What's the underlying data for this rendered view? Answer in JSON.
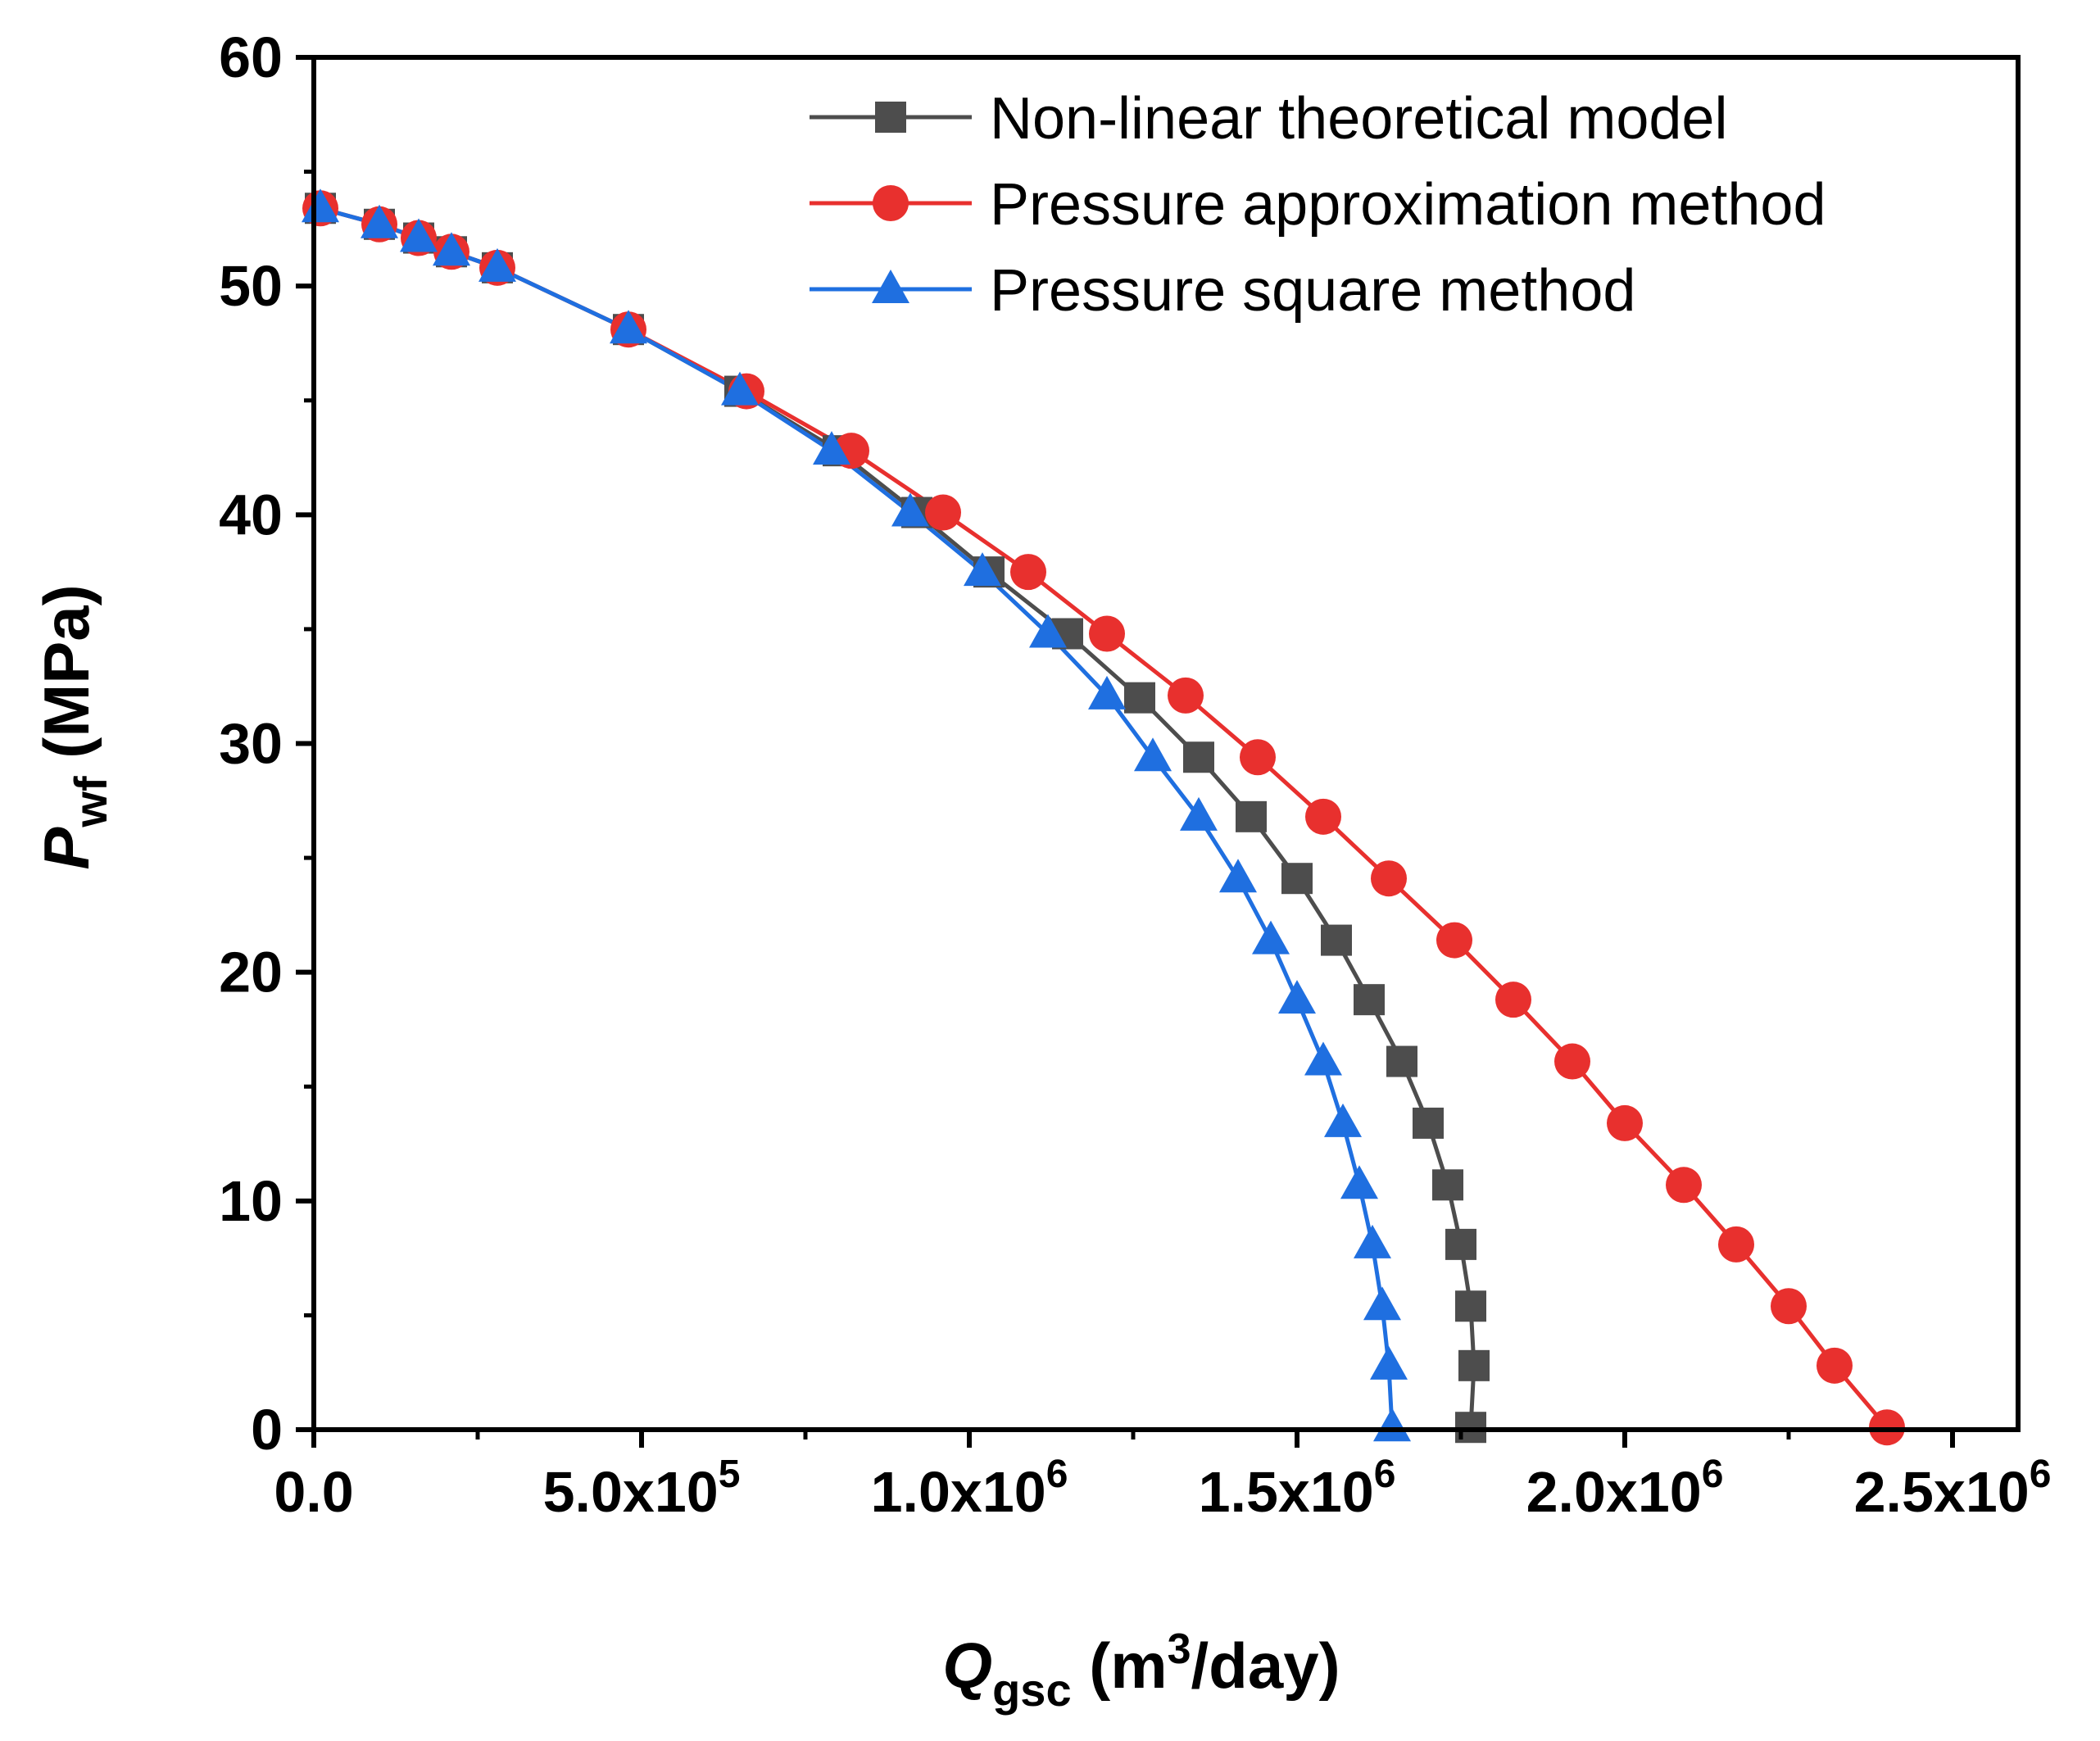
{
  "chart_data": {
    "type": "line",
    "title": "",
    "xlabel": {
      "main": "Q",
      "sub": "gsc",
      "unit_prefix": " (m",
      "unit_sup": "3",
      "unit_suffix": "/day)"
    },
    "ylabel": {
      "main": "P",
      "sub": "wf",
      "unit": " (MPa)"
    },
    "xlim": [
      0,
      2600000
    ],
    "ylim": [
      0,
      60
    ],
    "grid": false,
    "legend_position": "top-right",
    "x_ticks": [
      {
        "value": 0,
        "mantissa": "0.0",
        "exp": ""
      },
      {
        "value": 500000,
        "mantissa": "5.0x10",
        "exp": "5"
      },
      {
        "value": 1000000,
        "mantissa": "1.0x10",
        "exp": "6"
      },
      {
        "value": 1500000,
        "mantissa": "1.5x10",
        "exp": "6"
      },
      {
        "value": 2000000,
        "mantissa": "2.0x10",
        "exp": "6"
      },
      {
        "value": 2500000,
        "mantissa": "2.5x10",
        "exp": "6"
      }
    ],
    "y_ticks": [
      {
        "value": 0,
        "label": "0"
      },
      {
        "value": 10,
        "label": "10"
      },
      {
        "value": 20,
        "label": "20"
      },
      {
        "value": 30,
        "label": "30"
      },
      {
        "value": 40,
        "label": "40"
      },
      {
        "value": 50,
        "label": "50"
      },
      {
        "value": 60,
        "label": "60"
      }
    ],
    "series": [
      {
        "name": "Non-linear theoretical model",
        "color": "#4d4d4d",
        "marker": "square",
        "points": [
          [
            10000,
            53.4
          ],
          [
            100000,
            52.7
          ],
          [
            160000,
            52.1
          ],
          [
            210000,
            51.5
          ],
          [
            280000,
            50.8
          ],
          [
            480000,
            48.1
          ],
          [
            650000,
            45.4
          ],
          [
            800000,
            42.8
          ],
          [
            920000,
            40.1
          ],
          [
            1030000,
            37.5
          ],
          [
            1150000,
            34.8
          ],
          [
            1260000,
            32.0
          ],
          [
            1350000,
            29.4
          ],
          [
            1430000,
            26.8
          ],
          [
            1500000,
            24.1
          ],
          [
            1560000,
            21.4
          ],
          [
            1610000,
            18.8
          ],
          [
            1660000,
            16.1
          ],
          [
            1700000,
            13.4
          ],
          [
            1730000,
            10.7
          ],
          [
            1750000,
            8.1
          ],
          [
            1765000,
            5.4
          ],
          [
            1770000,
            2.8
          ],
          [
            1765000,
            0.1
          ]
        ]
      },
      {
        "name": "Pressure approximation method",
        "color": "#e8302e",
        "marker": "circle",
        "points": [
          [
            10000,
            53.4
          ],
          [
            100000,
            52.7
          ],
          [
            160000,
            52.1
          ],
          [
            210000,
            51.5
          ],
          [
            280000,
            50.8
          ],
          [
            480000,
            48.1
          ],
          [
            660000,
            45.4
          ],
          [
            820000,
            42.8
          ],
          [
            960000,
            40.1
          ],
          [
            1090000,
            37.5
          ],
          [
            1210000,
            34.8
          ],
          [
            1330000,
            32.1
          ],
          [
            1440000,
            29.4
          ],
          [
            1540000,
            26.8
          ],
          [
            1640000,
            24.1
          ],
          [
            1740000,
            21.4
          ],
          [
            1830000,
            18.8
          ],
          [
            1920000,
            16.1
          ],
          [
            2000000,
            13.4
          ],
          [
            2090000,
            10.7
          ],
          [
            2170000,
            8.1
          ],
          [
            2250000,
            5.4
          ],
          [
            2320000,
            2.8
          ],
          [
            2400000,
            0.1
          ]
        ]
      },
      {
        "name": "Pressure square method",
        "color": "#1f6fe0",
        "marker": "triangle",
        "points": [
          [
            10000,
            53.4
          ],
          [
            100000,
            52.7
          ],
          [
            160000,
            52.1
          ],
          [
            210000,
            51.5
          ],
          [
            280000,
            50.8
          ],
          [
            480000,
            48.1
          ],
          [
            650000,
            45.4
          ],
          [
            790000,
            42.8
          ],
          [
            910000,
            40.1
          ],
          [
            1020000,
            37.5
          ],
          [
            1120000,
            34.8
          ],
          [
            1210000,
            32.1
          ],
          [
            1280000,
            29.4
          ],
          [
            1350000,
            26.8
          ],
          [
            1410000,
            24.1
          ],
          [
            1460000,
            21.4
          ],
          [
            1500000,
            18.8
          ],
          [
            1540000,
            16.1
          ],
          [
            1570000,
            13.4
          ],
          [
            1595000,
            10.7
          ],
          [
            1615000,
            8.1
          ],
          [
            1630000,
            5.4
          ],
          [
            1640000,
            2.8
          ],
          [
            1645000,
            0.1
          ]
        ]
      }
    ]
  }
}
